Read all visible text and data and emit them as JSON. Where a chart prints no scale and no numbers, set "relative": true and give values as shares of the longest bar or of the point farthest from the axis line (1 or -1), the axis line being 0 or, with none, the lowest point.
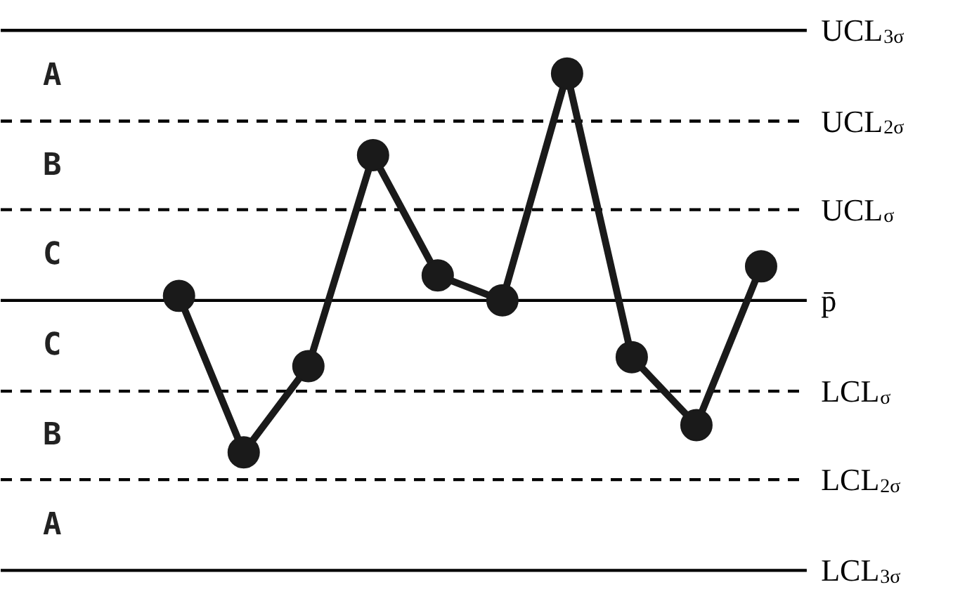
{
  "chart_data": {
    "type": "line",
    "relative": true,
    "marker": "circle",
    "line_style": "solid",
    "categories": [
      null,
      null,
      null,
      null,
      null,
      null,
      null,
      null,
      null,
      null
    ],
    "series": [
      {
        "color": "#1a1a1a",
        "values": [
          0.02,
          -0.67,
          -0.29,
          0.64,
          0.11,
          0,
          1,
          -0.25,
          -0.55,
          0.15
        ]
      }
    ],
    "ref_lines": [
      {
        "axis": "y",
        "value": 1.19,
        "label": "UCL$_{3σ}$",
        "line_style": "solid",
        "color": "#000000"
      },
      {
        "axis": "y",
        "value": 0.79,
        "label": "UCL$_{2σ}$",
        "line_style": "dashed",
        "color": "#000000"
      },
      {
        "axis": "y",
        "value": 0.4,
        "label": "UCL$_{σ}$",
        "line_style": "dashed",
        "color": "#000000"
      },
      {
        "axis": "y",
        "value": 0,
        "label": "p̄",
        "line_style": "solid",
        "color": "#000000"
      },
      {
        "axis": "y",
        "value": -0.4,
        "label": "LCL$_{σ}$",
        "line_style": "dashed",
        "color": "#000000"
      },
      {
        "axis": "y",
        "value": -0.79,
        "label": "LCL$_{2σ}$",
        "line_style": "dashed",
        "color": "#000000"
      },
      {
        "axis": "y",
        "value": -1.19,
        "label": "LCL$_{3σ}$",
        "line_style": "solid",
        "color": "#000000"
      }
    ],
    "annotations": [
      "A",
      "B",
      "C",
      "C",
      "B",
      "A"
    ]
  }
}
